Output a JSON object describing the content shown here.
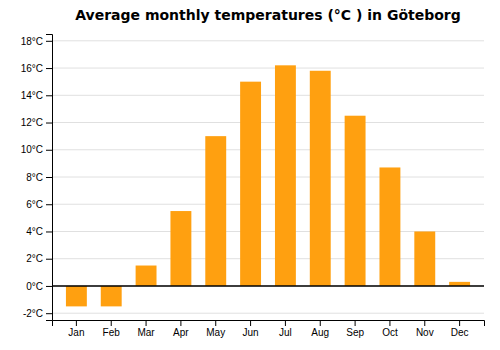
{
  "chart_data": {
    "type": "bar",
    "title": "Average monthly temperatures (°C ) in Göteborg",
    "categories": [
      "Jan",
      "Feb",
      "Mar",
      "Apr",
      "May",
      "Jun",
      "Jul",
      "Aug",
      "Sep",
      "Oct",
      "Nov",
      "Dec"
    ],
    "values": [
      -1.5,
      -1.5,
      1.5,
      5.5,
      11.0,
      15.0,
      16.2,
      15.8,
      12.5,
      8.7,
      4.0,
      0.3
    ],
    "color": "#FFA010",
    "ylim": [
      -2.5,
      18.5
    ],
    "yticks": [
      {
        "value": -2,
        "label": "-2°C"
      },
      {
        "value": 0,
        "label": "0°C"
      },
      {
        "value": 2,
        "label": "2°C"
      },
      {
        "value": 4,
        "label": "4°C"
      },
      {
        "value": 6,
        "label": "6°C"
      },
      {
        "value": 8,
        "label": "8°C"
      },
      {
        "value": 10,
        "label": "10°C"
      },
      {
        "value": 12,
        "label": "12°C"
      },
      {
        "value": 14,
        "label": "14°C"
      },
      {
        "value": 16,
        "label": "16°C"
      },
      {
        "value": 18,
        "label": "18°C"
      }
    ],
    "grid": true
  }
}
